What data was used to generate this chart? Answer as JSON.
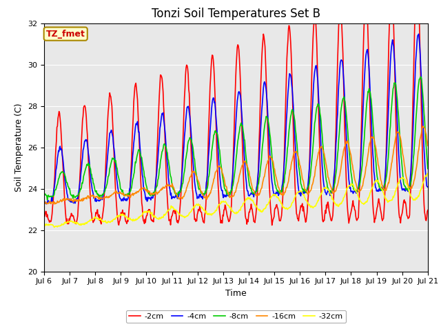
{
  "title": "Tonzi Soil Temperatures Set B",
  "xlabel": "Time",
  "ylabel": "Soil Temperature (C)",
  "ylim": [
    20,
    32
  ],
  "xtick_labels": [
    "Jul 6",
    "Jul 7",
    "Jul 8",
    "Jul 9",
    "Jul 10",
    "Jul 11",
    "Jul 12",
    "Jul 13",
    "Jul 14",
    "Jul 15",
    "Jul 16",
    "Jul 17",
    "Jul 18",
    "Jul 19",
    "Jul 20",
    "Jul 21"
  ],
  "series": {
    "-2cm": {
      "color": "#FF0000"
    },
    "-4cm": {
      "color": "#0000FF"
    },
    "-8cm": {
      "color": "#00CC00"
    },
    "-16cm": {
      "color": "#FF8800"
    },
    "-32cm": {
      "color": "#FFFF00"
    }
  },
  "legend_label": "TZ_fmet",
  "legend_bg": "#FFFFCC",
  "legend_border": "#AA8800",
  "bg_color": "#E8E8E8",
  "title_fontsize": 12,
  "label_fontsize": 9,
  "tick_fontsize": 8,
  "linewidth": 1.2
}
